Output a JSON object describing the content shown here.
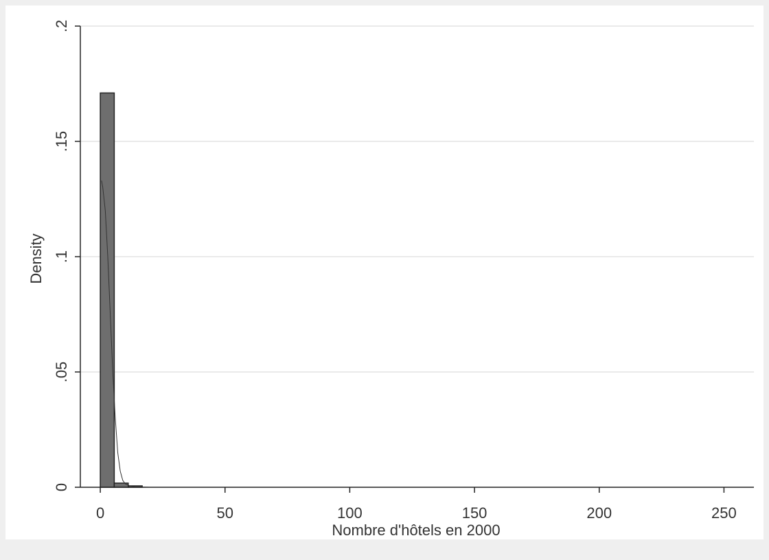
{
  "chart_data": {
    "type": "bar",
    "title": "",
    "xlabel": "Nombre d'hôtels en 2000",
    "ylabel": "Density",
    "xlim": [
      -8,
      262
    ],
    "ylim": [
      0,
      0.2
    ],
    "x_ticks": [
      0,
      50,
      100,
      150,
      200,
      250
    ],
    "x_tick_labels": [
      "0",
      "50",
      "100",
      "150",
      "200",
      "250"
    ],
    "y_ticks": [
      0,
      0.05,
      0.1,
      0.15,
      0.2
    ],
    "y_tick_labels": [
      "0",
      ".05",
      ".1",
      ".15",
      ".2"
    ],
    "grid": true,
    "bins": [
      {
        "x0": 0,
        "x1": 5.6,
        "density": 0.171
      },
      {
        "x0": 5.6,
        "x1": 11.2,
        "density": 0.0018
      },
      {
        "x0": 11.2,
        "x1": 16.8,
        "density": 0.0006
      }
    ],
    "density_curve": {
      "x": [
        0.5,
        1,
        2,
        3,
        4,
        5,
        5.5,
        6,
        7,
        8,
        9,
        10,
        12,
        14,
        16,
        20
      ],
      "y": [
        0.133,
        0.13,
        0.12,
        0.1,
        0.075,
        0.05,
        0.04,
        0.03,
        0.015,
        0.007,
        0.003,
        0.0015,
        0.0005,
        0.0002,
        0.0001,
        0
      ]
    },
    "colors": {
      "background": "#efefef",
      "plot_area": "#ffffff",
      "bar_fill": "#6e6e6e",
      "bar_stroke": "#222222",
      "grid": "#e4e4e4",
      "curve": "#333333"
    }
  }
}
